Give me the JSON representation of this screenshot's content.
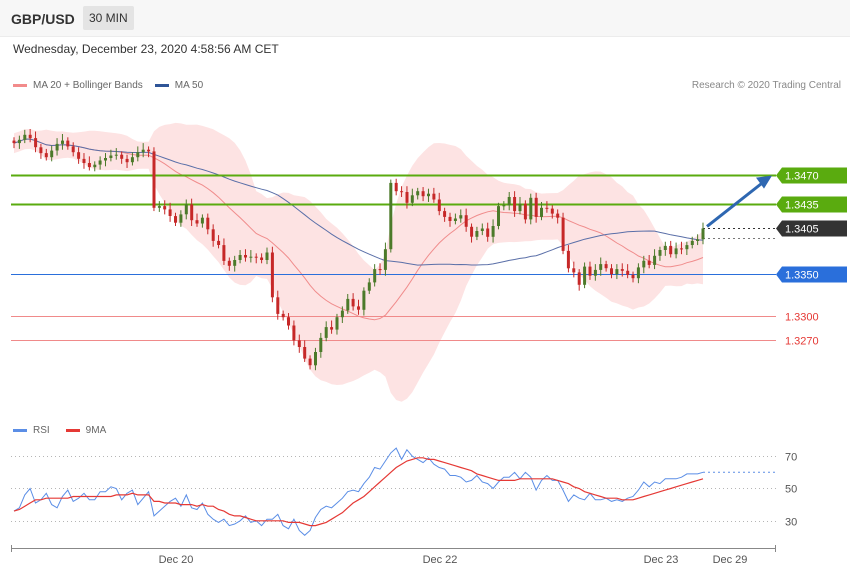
{
  "header": {
    "symbol": "GBP/USD",
    "timeframe": "30 MIN",
    "datetime": "Wednesday, December 23, 2020 4:58:56 AM CET"
  },
  "legend": {
    "ma20_label": "MA 20 + Bollinger Bands",
    "ma50_label": "MA 50",
    "credit": "Research © 2020 Trading Central"
  },
  "rsi_legend": {
    "rsi_label": "RSI",
    "ma_label": "9MA"
  },
  "colors": {
    "resistance": "#5aab0f",
    "support_blue": "#2a6fdb",
    "support_red": "#e53935",
    "last_price": "#333333",
    "arrow": "#2e67b1",
    "bands": "#fde3e3",
    "ma20": "#f08c8c",
    "ma50": "#5a6fa8",
    "candle_up": "#4c7a2a",
    "candle_down": "#c62828",
    "rsi": "#5b8ee6",
    "rsi_ma": "#e53935"
  },
  "chart_data": [
    {
      "type": "candlestick",
      "title": "GBP/USD",
      "x_ticks": [
        "Dec 20",
        "Dec 22",
        "Dec 23",
        "Dec 29"
      ],
      "ylim": [
        1.318,
        1.356
      ],
      "levels": [
        {
          "value": 1.347,
          "label": "1.3470",
          "kind": "resistance"
        },
        {
          "value": 1.3435,
          "label": "1.3435",
          "kind": "resistance"
        },
        {
          "value": 1.3405,
          "label": "1.3405",
          "kind": "last"
        },
        {
          "value": 1.335,
          "label": "1.3350",
          "kind": "support"
        },
        {
          "value": 1.33,
          "label": "1.3300",
          "kind": "support_red"
        },
        {
          "value": 1.327,
          "label": "1.3270",
          "kind": "support_red"
        }
      ],
      "close": [
        1.3508,
        1.3512,
        1.3518,
        1.3514,
        1.3503,
        1.3496,
        1.3491,
        1.3499,
        1.3507,
        1.3511,
        1.3504,
        1.3497,
        1.3489,
        1.3484,
        1.3479,
        1.3482,
        1.3487,
        1.349,
        1.3493,
        1.3494,
        1.3489,
        1.3485,
        1.3491,
        1.3497,
        1.35,
        1.3498,
        1.343,
        1.3432,
        1.3428,
        1.342,
        1.3412,
        1.3422,
        1.3434,
        1.3415,
        1.3411,
        1.3418,
        1.3404,
        1.339,
        1.3385,
        1.3366,
        1.336,
        1.3367,
        1.3373,
        1.337,
        1.3371,
        1.337,
        1.3367,
        1.3376,
        1.3322,
        1.3302,
        1.3298,
        1.3288,
        1.327,
        1.3262,
        1.3248,
        1.324,
        1.3256,
        1.3273,
        1.3286,
        1.3283,
        1.3298,
        1.3306,
        1.332,
        1.3311,
        1.3307,
        1.333,
        1.334,
        1.3356,
        1.3355,
        1.338,
        1.346,
        1.345,
        1.3449,
        1.3436,
        1.3445,
        1.345,
        1.3444,
        1.3447,
        1.344,
        1.3426,
        1.3419,
        1.3414,
        1.3417,
        1.3421,
        1.3407,
        1.3395,
        1.3402,
        1.3405,
        1.3395,
        1.3408,
        1.3432,
        1.3433,
        1.3443,
        1.3426,
        1.3435,
        1.3416,
        1.3442,
        1.3419,
        1.343,
        1.3429,
        1.3423,
        1.3418,
        1.3378,
        1.3357,
        1.3352,
        1.3337,
        1.3359,
        1.3348,
        1.3355,
        1.3362,
        1.3357,
        1.335,
        1.3356,
        1.3354,
        1.3349,
        1.3345,
        1.3358,
        1.3366,
        1.3361,
        1.3372,
        1.3379,
        1.3384,
        1.3374,
        1.3381,
        1.338,
        1.3385,
        1.339,
        1.3392,
        1.3405
      ]
    },
    {
      "type": "line",
      "title": "RSI",
      "ylim": [
        15,
        80
      ],
      "y_ticks": [
        30,
        50,
        70
      ],
      "series": [
        {
          "name": "RSI",
          "values": [
            36,
            38,
            46,
            50,
            41,
            43,
            47,
            40,
            38,
            45,
            49,
            42,
            44,
            47,
            43,
            43,
            48,
            48,
            51,
            50,
            43,
            47,
            49,
            40,
            44,
            48,
            33,
            36,
            39,
            42,
            44,
            39,
            46,
            38,
            37,
            41,
            34,
            31,
            29,
            31,
            27,
            28,
            30,
            33,
            29,
            30,
            27,
            31,
            31,
            34,
            27,
            25,
            31,
            24,
            21,
            24,
            32,
            37,
            39,
            38,
            41,
            44,
            48,
            49,
            48,
            53,
            57,
            63,
            62,
            67,
            72,
            75,
            68,
            74,
            70,
            68,
            66,
            69,
            65,
            63,
            62,
            58,
            58,
            57,
            54,
            55,
            58,
            54,
            53,
            50,
            54,
            57,
            57,
            60,
            56,
            60,
            57,
            49,
            55,
            58,
            55,
            55,
            49,
            42,
            46,
            44,
            43,
            47,
            43,
            43,
            44,
            42,
            43,
            42,
            44,
            45,
            49,
            54,
            51,
            54,
            53,
            56,
            56,
            56,
            57,
            59,
            59,
            59,
            60
          ]
        },
        {
          "name": "9MA",
          "values": [
            36,
            37,
            39,
            41,
            43,
            43,
            44,
            44,
            44,
            44,
            44,
            45,
            45,
            45,
            45,
            45,
            45,
            45,
            45,
            46,
            46,
            46,
            47,
            46,
            46,
            46,
            42,
            42,
            41,
            41,
            41,
            40,
            40,
            40,
            39,
            40,
            39,
            39,
            37,
            36,
            34,
            33,
            33,
            32,
            31,
            30,
            30,
            30,
            30,
            30,
            30,
            29,
            29,
            29,
            28,
            27,
            27,
            28,
            29,
            31,
            33,
            35,
            38,
            41,
            43,
            45,
            48,
            51,
            54,
            57,
            60,
            63,
            65,
            67,
            68,
            69,
            69,
            68,
            68,
            67,
            66,
            65,
            64,
            63,
            62,
            61,
            59,
            58,
            57,
            56,
            55,
            55,
            55,
            55,
            56,
            56,
            56,
            56,
            56,
            56,
            56,
            55,
            54,
            53,
            51,
            50,
            48,
            47,
            46,
            45,
            44,
            44,
            44,
            43,
            43,
            43,
            44,
            45,
            46,
            47,
            48,
            49,
            50,
            51,
            52,
            53,
            54,
            55,
            56
          ]
        }
      ]
    }
  ]
}
